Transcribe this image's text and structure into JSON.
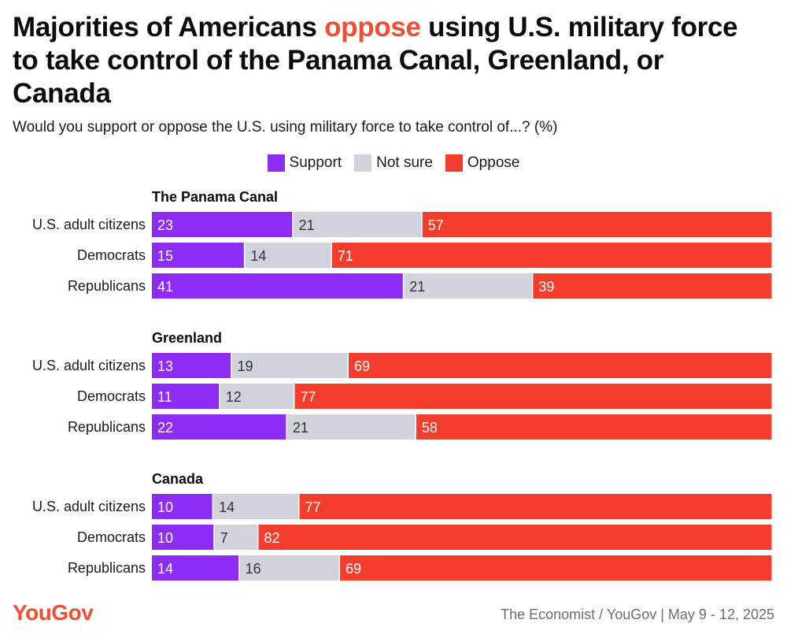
{
  "header": {
    "title_pre": "Majorities of Americans ",
    "title_highlight": "oppose",
    "title_post": " using U.S. military force to take control of the Panama Canal, Greenland, or Canada",
    "subtitle": "Would you support or oppose the U.S. using military force to take control of...? (%)"
  },
  "legend": {
    "support": "Support",
    "not_sure": "Not sure",
    "oppose": "Oppose"
  },
  "colors": {
    "support": "#8c2cf5",
    "not_sure": "#d0d3db",
    "oppose": "#f43d2c",
    "highlight": "#f04e33"
  },
  "chart_data": {
    "type": "bar",
    "stacked": true,
    "orientation": "horizontal",
    "legend_position": "top-center",
    "series_keys": [
      "support",
      "not_sure",
      "oppose"
    ],
    "groups": [
      {
        "title": "The Panama Canal",
        "rows": [
          {
            "label": "U.S. adult citizens",
            "values": [
              23,
              21,
              57
            ]
          },
          {
            "label": "Democrats",
            "values": [
              15,
              14,
              71
            ]
          },
          {
            "label": "Republicans",
            "values": [
              41,
              21,
              39
            ]
          }
        ]
      },
      {
        "title": "Greenland",
        "rows": [
          {
            "label": "U.S. adult citizens",
            "values": [
              13,
              19,
              69
            ]
          },
          {
            "label": "Democrats",
            "values": [
              11,
              12,
              77
            ]
          },
          {
            "label": "Republicans",
            "values": [
              22,
              21,
              58
            ]
          }
        ]
      },
      {
        "title": "Canada",
        "rows": [
          {
            "label": "U.S. adult citizens",
            "values": [
              10,
              14,
              77
            ]
          },
          {
            "label": "Democrats",
            "values": [
              10,
              7,
              82
            ]
          },
          {
            "label": "Republicans",
            "values": [
              14,
              16,
              69
            ]
          }
        ]
      }
    ]
  },
  "footer": {
    "logo": "YouGov",
    "source": "The Economist / YouGov | May 9 - 12, 2025"
  }
}
